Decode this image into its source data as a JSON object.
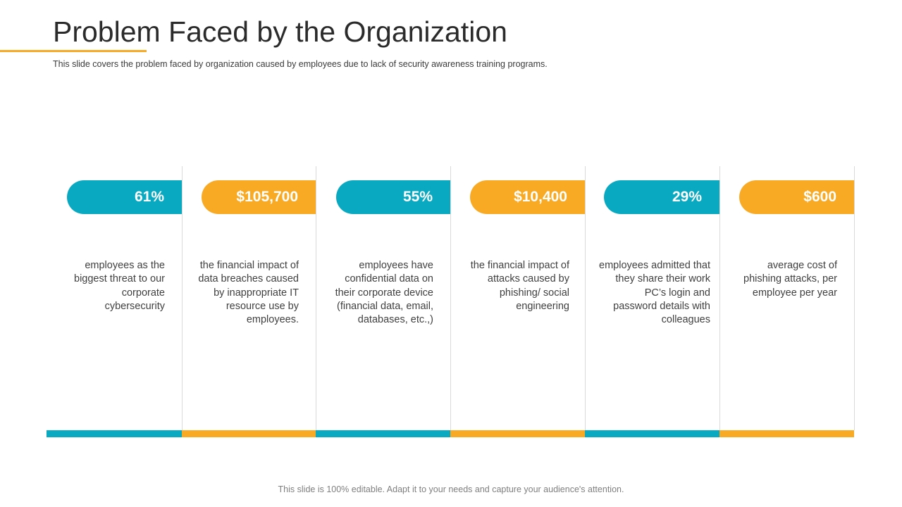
{
  "title": "Problem Faced by the Organization",
  "subtitle": "This slide covers the problem faced by organization caused by employees due to lack  of security awareness training programs.",
  "colors": {
    "teal": "#0aa9c2",
    "orange": "#f9aa25",
    "accent_line": "#f9aa25"
  },
  "stats": [
    {
      "value": "61%",
      "color": "teal",
      "description": "employees as the biggest threat to our corporate cybersecurity"
    },
    {
      "value": "$105,700",
      "color": "orange",
      "description": "the financial impact of data breaches caused by inappropriate IT resource use by employees."
    },
    {
      "value": "55%",
      "color": "teal",
      "description": "employees have confidential data on their corporate device (financial data, email, databases, etc.,)"
    },
    {
      "value": "$10,400",
      "color": "orange",
      "description": "the financial impact of attacks caused by phishing/ social engineering"
    },
    {
      "value": "29%",
      "color": "teal",
      "description": "employees admitted that they share their work PC’s login and password details with colleagues"
    },
    {
      "value": "$600",
      "color": "orange",
      "description": "average cost of phishing attacks, per employee per year"
    }
  ],
  "footer": "This slide is 100% editable. Adapt it to your needs and capture your audience's attention."
}
